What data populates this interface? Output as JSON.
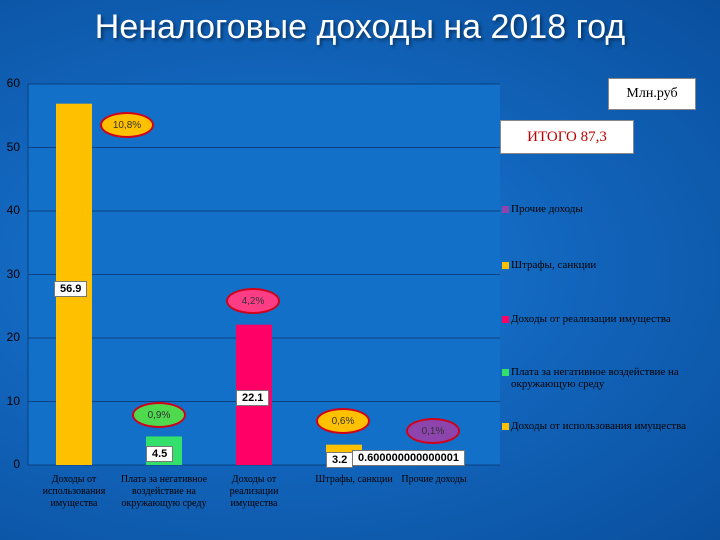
{
  "title": "Неналоговые доходы на 2018 год",
  "units": "Млн.руб",
  "total": "ИТОГО 87,3",
  "colors": {
    "background": "#1266bd",
    "plot_area": "#1270c8",
    "gridline": "#0a3f80",
    "ellipse_border": "#d0021b"
  },
  "chart_data": {
    "type": "bar",
    "ylim": [
      0,
      60
    ],
    "y_ticks": [
      0,
      10,
      20,
      30,
      40,
      50,
      60
    ],
    "grid": true,
    "legend_position": "right",
    "categories": [
      "Доходы от использования имущества",
      "Плата за негативное воздействие на окружающую среду",
      "Доходы от реализации имущества",
      "Штрафы, санкции",
      "Прочие доходы"
    ],
    "values": [
      56.9,
      4.5,
      22.1,
      3.2,
      0.6
    ],
    "data_labels": [
      "56.9",
      "4.5",
      "22.1",
      "3.2",
      "0.600000000000001"
    ],
    "bar_colors": [
      "#ffc000",
      "#33e06b",
      "#ff0066",
      "#ffc000",
      "#ffc000"
    ],
    "percent_labels": [
      {
        "text": "10,8%",
        "fill": "#ffc000"
      },
      {
        "text": "0,9%",
        "fill": "#4fd94f"
      },
      {
        "text": "4,2%",
        "fill": "#ff3d85"
      },
      {
        "text": "0,6%",
        "fill": "#ffc000"
      },
      {
        "text": "0,1%",
        "fill": "#8e44ad"
      }
    ],
    "legend": [
      {
        "label": "Прочие доходы",
        "color": "#8e44ad"
      },
      {
        "label": "Штрафы, санкции",
        "color": "#ffc000"
      },
      {
        "label": "Доходы от реализации имущества",
        "color": "#ff0066"
      },
      {
        "label": "Плата за негативное воздействие на окружающую среду",
        "color": "#33e06b"
      },
      {
        "label": "Доходы от использования имущества",
        "color": "#ffc000"
      }
    ]
  }
}
